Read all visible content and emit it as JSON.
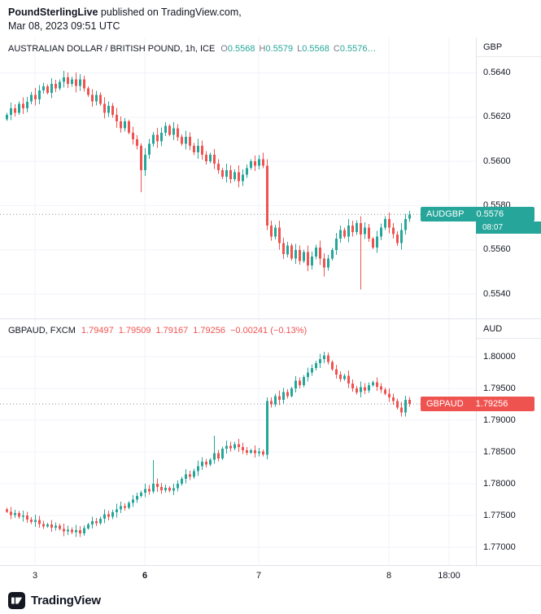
{
  "header": {
    "publisher": "PoundSterlingLive",
    "publisher_suffix": " published on TradingView.com,",
    "date_line": "Mar 08, 2023 09:51 UTC"
  },
  "footer": {
    "brand": "TradingView"
  },
  "time_axis": {
    "labels": [
      {
        "text": "3",
        "pos": 43,
        "bold": false
      },
      {
        "text": "6",
        "pos": 178,
        "bold": true
      },
      {
        "text": "7",
        "pos": 318,
        "bold": false
      },
      {
        "text": "8",
        "pos": 478,
        "bold": false
      },
      {
        "text": "18:00",
        "pos": 552,
        "bold": false
      }
    ]
  },
  "chart_data": [
    {
      "type": "candlestick",
      "symbol": "AUDGBP",
      "legend_title": "AUSTRALIAN DOLLAR / BRITISH POUND, 1h, ICE",
      "ohlc": [
        {
          "label": "O",
          "value": "0.5568"
        },
        {
          "label": "H",
          "value": "0.5579"
        },
        {
          "label": "L",
          "value": "0.5568"
        },
        {
          "label": "C",
          "value": "0.5576…"
        }
      ],
      "currency": "GBP",
      "badge": {
        "symbol": "AUDGBP",
        "price": "0.5576",
        "price_value": 0.5576,
        "countdown": "08:07",
        "color": "#26a69a"
      },
      "up_color": "#26a69a",
      "down_color": "#ef5350",
      "y_domain": [
        0.5529,
        0.5656
      ],
      "ticks": [
        0.564,
        0.562,
        0.56,
        0.558,
        0.556,
        0.554
      ],
      "tick_labels": [
        "0.5640",
        "0.5620",
        "0.5600",
        "0.5580",
        "0.5560",
        "0.5540"
      ],
      "first_open": 0.5619,
      "wick_base": 0.00025,
      "spikes": {
        "33": {
          "l": 0.5586
        },
        "63": {
          "h": 0.5604
        },
        "64": {
          "l": 0.5569
        },
        "78": {
          "l": 0.5548
        },
        "87": {
          "l": 0.5542
        }
      },
      "closes": [
        0.5621,
        0.5624,
        0.5622,
        0.5626,
        0.5624,
        0.5627,
        0.563,
        0.5628,
        0.5632,
        0.5634,
        0.5631,
        0.5635,
        0.5633,
        0.5636,
        0.5638,
        0.5635,
        0.5637,
        0.5634,
        0.5637,
        0.5633,
        0.563,
        0.5627,
        0.563,
        0.5626,
        0.5622,
        0.5625,
        0.5621,
        0.5618,
        0.5615,
        0.5618,
        0.5613,
        0.561,
        0.5607,
        0.5596,
        0.5603,
        0.5608,
        0.5612,
        0.5609,
        0.5613,
        0.5616,
        0.5612,
        0.5615,
        0.5611,
        0.5608,
        0.5611,
        0.5607,
        0.5604,
        0.5607,
        0.5603,
        0.56,
        0.5603,
        0.5599,
        0.5596,
        0.5593,
        0.5596,
        0.5592,
        0.5595,
        0.5591,
        0.5594,
        0.5597,
        0.56,
        0.5598,
        0.5601,
        0.5598,
        0.5571,
        0.5566,
        0.557,
        0.5563,
        0.5558,
        0.5562,
        0.5556,
        0.556,
        0.5555,
        0.5559,
        0.5553,
        0.5557,
        0.5561,
        0.5556,
        0.5552,
        0.5556,
        0.556,
        0.5565,
        0.5569,
        0.5566,
        0.5571,
        0.5568,
        0.5572,
        0.5567,
        0.557,
        0.5565,
        0.5561,
        0.5566,
        0.557,
        0.5574,
        0.557,
        0.5567,
        0.5563,
        0.5569,
        0.5574,
        0.5576
      ]
    },
    {
      "type": "candlestick",
      "symbol": "GBPAUD",
      "legend_title": "GBPAUD, FXCM",
      "legend_values": [
        "1.79497",
        "1.79509",
        "1.79167",
        "1.79256",
        "−0.00241 (−0.13%)"
      ],
      "currency": "AUD",
      "badge": {
        "symbol": "GBPAUD",
        "price": "1.79256",
        "price_value": 1.79256,
        "color": "#ef5350"
      },
      "up_color": "#26a69a",
      "down_color": "#ef5350",
      "y_domain": [
        1.7672,
        1.8059
      ],
      "ticks": [
        1.8,
        1.795,
        1.79,
        1.785,
        1.78,
        1.775,
        1.77
      ],
      "tick_labels": [
        "1.80000",
        "1.79500",
        "1.79000",
        "1.78500",
        "1.78000",
        "1.77500",
        "1.77000"
      ],
      "first_open": 1.776,
      "wick_base": 0.0007,
      "spikes": {
        "36": {
          "h": 1.7837
        },
        "51": {
          "h": 1.7876
        },
        "64": {
          "h": 1.7936
        },
        "78": {
          "h": 1.8008
        },
        "97": {
          "l": 1.7906
        }
      },
      "closes": [
        1.7756,
        1.7751,
        1.7754,
        1.7748,
        1.775,
        1.7744,
        1.774,
        1.7743,
        1.7737,
        1.7733,
        1.7736,
        1.7731,
        1.7734,
        1.7729,
        1.7725,
        1.7728,
        1.7724,
        1.7727,
        1.7722,
        1.773,
        1.7736,
        1.7741,
        1.7738,
        1.7745,
        1.7752,
        1.7748,
        1.7755,
        1.776,
        1.7765,
        1.7762,
        1.777,
        1.7775,
        1.7781,
        1.7786,
        1.7792,
        1.7788,
        1.78,
        1.7795,
        1.779,
        1.7794,
        1.7789,
        1.7793,
        1.78,
        1.7808,
        1.7815,
        1.7811,
        1.782,
        1.7828,
        1.7835,
        1.783,
        1.7838,
        1.7848,
        1.784,
        1.7855,
        1.786,
        1.7856,
        1.7862,
        1.7858,
        1.7853,
        1.7849,
        1.7853,
        1.7848,
        1.7851,
        1.7846,
        1.793,
        1.7925,
        1.7938,
        1.7932,
        1.7944,
        1.7938,
        1.795,
        1.7962,
        1.7955,
        1.7968,
        1.7975,
        1.7982,
        1.799,
        1.7996,
        1.8002,
        1.7992,
        1.798,
        1.7972,
        1.7965,
        1.797,
        1.7958,
        1.795,
        1.7944,
        1.7952,
        1.7947,
        1.7955,
        1.796,
        1.7953,
        1.7948,
        1.7942,
        1.7936,
        1.793,
        1.792,
        1.7912,
        1.7932,
        1.79256
      ]
    }
  ]
}
